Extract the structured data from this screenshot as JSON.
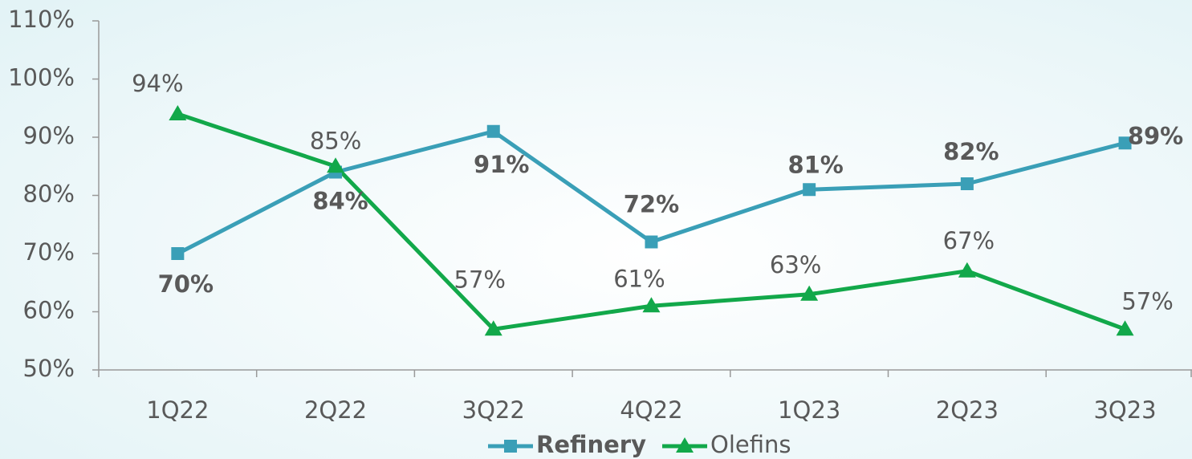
{
  "chart_data": {
    "type": "line",
    "categories": [
      "1Q22",
      "2Q22",
      "3Q22",
      "4Q22",
      "1Q23",
      "2Q23",
      "3Q23"
    ],
    "series": [
      {
        "name": "Refinery",
        "color": "#3a9fb7",
        "marker": "square",
        "values": [
          70,
          84,
          91,
          72,
          81,
          82,
          89
        ],
        "value_labels": [
          "70%",
          "84%",
          "91%",
          "72%",
          "81%",
          "82%",
          "89%"
        ]
      },
      {
        "name": "Olefins",
        "color": "#12a84a",
        "marker": "triangle",
        "values": [
          94,
          85,
          57,
          61,
          63,
          67,
          57
        ],
        "value_labels": [
          "94%",
          "85%",
          "57%",
          "61%",
          "63%",
          "67%",
          "57%"
        ]
      }
    ],
    "ylim": [
      50,
      110
    ],
    "yticks": [
      {
        "value": 50,
        "label": "50%"
      },
      {
        "value": 60,
        "label": "60%"
      },
      {
        "value": 70,
        "label": "70%"
      },
      {
        "value": 80,
        "label": "80%"
      },
      {
        "value": 90,
        "label": "90%"
      },
      {
        "value": 100,
        "label": "100%"
      },
      {
        "value": 110,
        "label": "110%"
      }
    ],
    "legend": "bottom"
  }
}
